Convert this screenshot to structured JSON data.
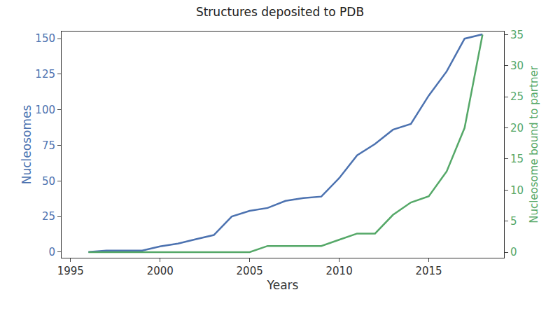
{
  "chart_data": {
    "type": "line",
    "title": "Structures deposited to PDB",
    "x_label": "Years",
    "y_label": "Nucleosomes",
    "y2_label": "Nucleosome bound to partner",
    "x": [
      1996,
      1997,
      1998,
      1999,
      2000,
      2001,
      2002,
      2003,
      2004,
      2005,
      2006,
      2007,
      2008,
      2009,
      2010,
      2011,
      2012,
      2013,
      2014,
      2015,
      2016,
      2017,
      2018
    ],
    "series": [
      {
        "name": "Nucleosomes",
        "color": "#4c72b0",
        "axis": "y",
        "values": [
          0,
          1,
          1,
          1,
          4,
          6,
          9,
          12,
          25,
          29,
          31,
          36,
          38,
          39,
          52,
          68,
          76,
          86,
          90,
          110,
          127,
          150,
          153
        ]
      },
      {
        "name": "Nucleosome bound to partner",
        "color": "#55a868",
        "axis": "y2",
        "values": [
          0,
          0,
          0,
          0,
          0,
          0,
          0,
          0,
          0,
          0,
          1,
          1,
          1,
          1,
          2,
          3,
          3,
          6,
          8,
          9,
          13,
          20,
          35
        ]
      }
    ],
    "xlim": [
      1994.5,
      2019.2
    ],
    "xticks": [
      1995,
      2000,
      2005,
      2010,
      2015
    ],
    "ylim": [
      -4,
      155
    ],
    "yticks": [
      0,
      25,
      50,
      75,
      100,
      125,
      150
    ],
    "y2lim": [
      -0.9,
      35.5
    ],
    "y2ticks": [
      0,
      5,
      10,
      15,
      20,
      25,
      30,
      35
    ],
    "grid": false
  }
}
